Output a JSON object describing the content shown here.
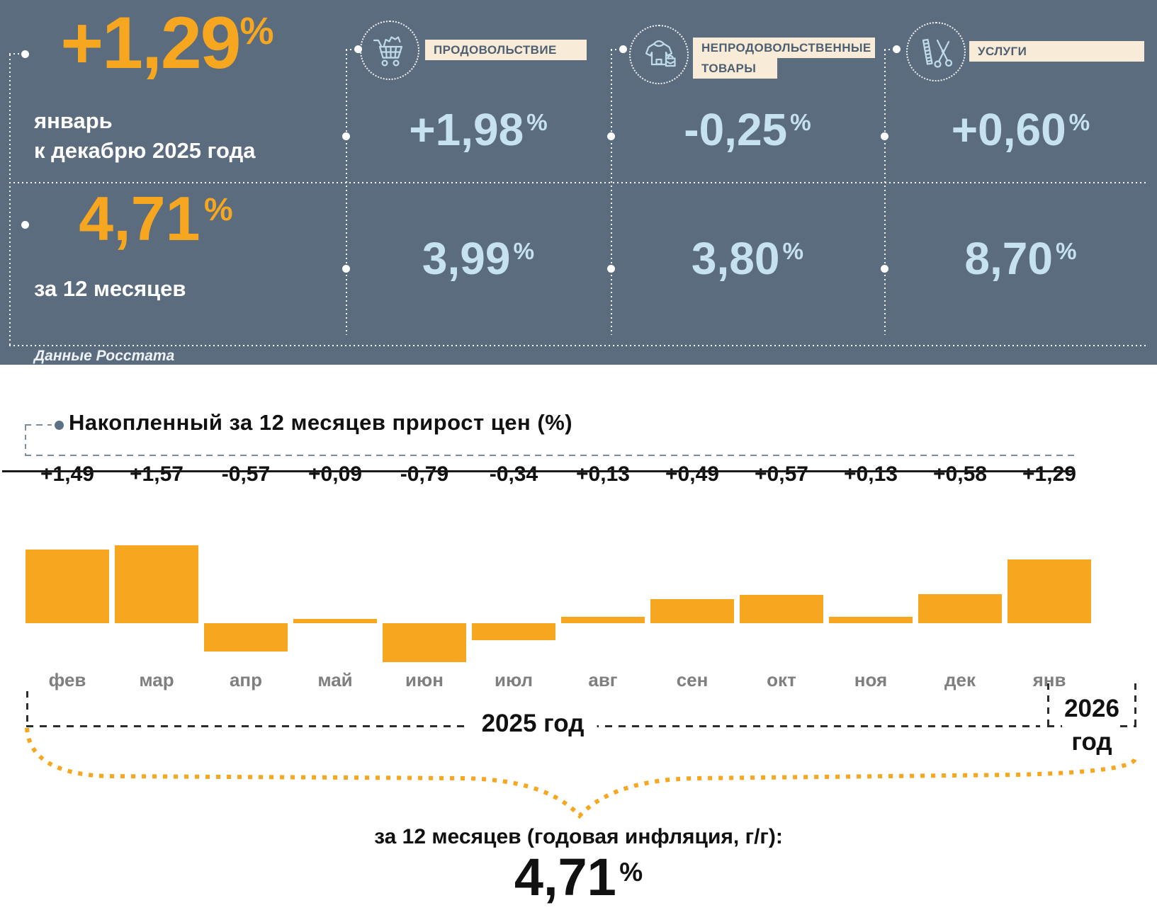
{
  "colors": {
    "panel_bg": "#5b6c7e",
    "accent_orange": "#F6A71F",
    "light_blue": "#C6E2F2",
    "cream": "#F8ECD9"
  },
  "panel": {
    "headline": {
      "value": "+1,29",
      "pct": "%",
      "caption1": "январь",
      "caption2": "к декабрю 2025 года"
    },
    "annual": {
      "value": "4,71",
      "pct": "%",
      "caption": "за 12 месяцев"
    },
    "source": "Данные Росстата",
    "categories": [
      {
        "icon": "cart-icon",
        "label1": "ПРОДОВОЛЬСТВИЕ",
        "label2": "",
        "monthly": "+1,98",
        "annual": "3,99",
        "pct": "%"
      },
      {
        "icon": "clothes-bag-icon",
        "label1": "НЕПРОДОВОЛЬСТВЕННЫЕ",
        "label2": "ТОВАРЫ",
        "monthly": "-0,25",
        "annual": "3,80",
        "pct": "%"
      },
      {
        "icon": "comb-scissors-icon",
        "label1": "УСЛУГИ",
        "label2": "",
        "monthly": "+0,60",
        "annual": "8,70",
        "pct": "%"
      }
    ]
  },
  "chart_data": {
    "type": "bar",
    "title": "Накопленный за 12 месяцев прирост цен (%)",
    "categories": [
      "фев",
      "мар",
      "апр",
      "май",
      "июн",
      "июл",
      "авг",
      "сен",
      "окт",
      "ноя",
      "дек",
      "янв"
    ],
    "values": [
      1.49,
      1.57,
      -0.57,
      0.09,
      -0.79,
      -0.34,
      0.13,
      0.49,
      0.57,
      0.13,
      0.58,
      1.29
    ],
    "value_labels": [
      "+1,49",
      "+1,57",
      "-0,57",
      "+0,09",
      "-0,79",
      "-0,34",
      "+0,13",
      "+0,49",
      "+0,57",
      "+0,13",
      "+0,58",
      "+1,29"
    ],
    "bar_color": "#F6A71F",
    "ylim": [
      -1.0,
      1.8
    ],
    "grid": "off",
    "year_left_label": "2025 год",
    "year_right_line1": "2026",
    "year_right_line2": "год"
  },
  "footer": {
    "label": "за 12 месяцев (годовая инфляция, г/г):",
    "value": "4,71",
    "pct": "%"
  }
}
